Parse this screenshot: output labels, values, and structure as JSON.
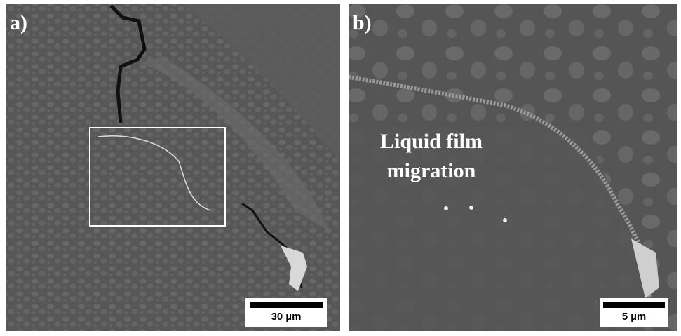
{
  "panels": [
    {
      "label": "a)",
      "scale_bar": "30 µm"
    },
    {
      "label": "b)",
      "scale_bar": "5 µm",
      "annotation": [
        "Liquid film",
        "migration"
      ]
    }
  ]
}
